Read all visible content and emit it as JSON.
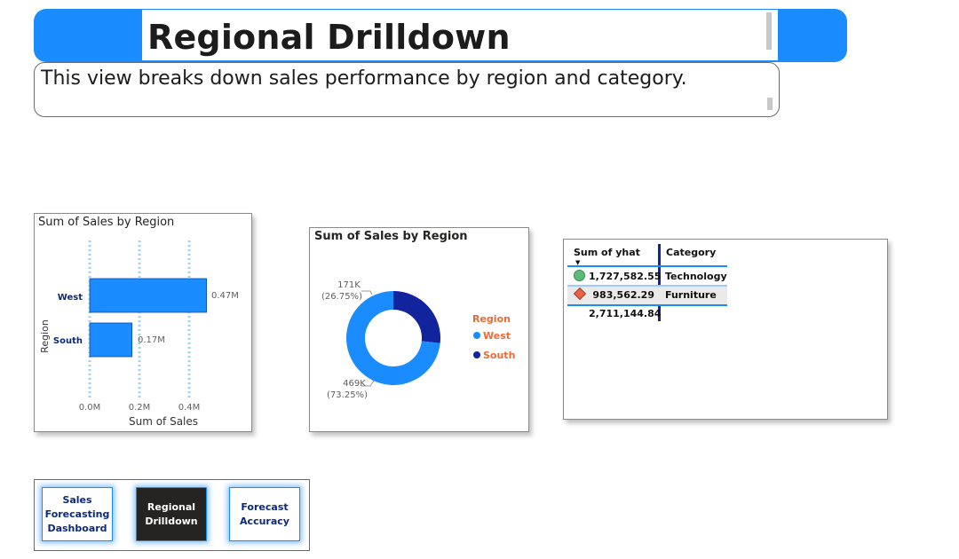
{
  "header": {
    "title": "Regional Drilldown",
    "subtitle": "This view breaks down sales performance by region and category."
  },
  "bar_visual": {
    "title": "Sum of Sales by Region",
    "ylabel": "Region",
    "xlabel": "Sum of Sales",
    "categories": [
      "West",
      "South"
    ],
    "value_labels": [
      "0.47M",
      "0.17M"
    ],
    "ticks": [
      "0.0M",
      "0.2M",
      "0.4M"
    ]
  },
  "donut_visual": {
    "title": "Sum of Sales by Region",
    "legend_title": "Region",
    "legend": [
      "West",
      "South"
    ],
    "label_south_value": "171K",
    "label_south_pct": "(26.75%)",
    "label_west_value": "469K",
    "label_west_pct": "(73.25%)"
  },
  "table_visual": {
    "col_value": "Sum of yhat",
    "col_category": "Category",
    "rows": [
      {
        "value": "1,727,582.55",
        "category": "Technology",
        "indicator": "green-circle-icon"
      },
      {
        "value": "983,562.29",
        "category": "Furniture",
        "indicator": "red-diamond-icon"
      }
    ],
    "total": "2,711,144.84"
  },
  "nav": {
    "btn1_line1": "Sales",
    "btn1_line2": "Forecasting",
    "btn1_line3": "Dashboard",
    "btn2_line1": "Regional",
    "btn2_line2": "Drilldown",
    "btn3_line1": "Forecast",
    "btn3_line2": "Accuracy"
  },
  "colors": {
    "accent": "#1a8cff",
    "west": "#1a8cff",
    "south": "#12239e",
    "legend_title": "#e66c37"
  },
  "chart_data": [
    {
      "type": "bar",
      "title": "Sum of Sales by Region",
      "xlabel": "Sum of Sales",
      "ylabel": "Region",
      "categories": [
        "West",
        "South"
      ],
      "values": [
        0.47,
        0.17
      ],
      "unit": "M",
      "xlim": [
        0,
        0.5
      ],
      "grid": true
    },
    {
      "type": "pie",
      "title": "Sum of Sales by Region",
      "categories": [
        "South",
        "West"
      ],
      "values": [
        171,
        469
      ],
      "unit": "K",
      "percents": [
        26.75,
        73.25
      ],
      "legend": "right"
    }
  ]
}
